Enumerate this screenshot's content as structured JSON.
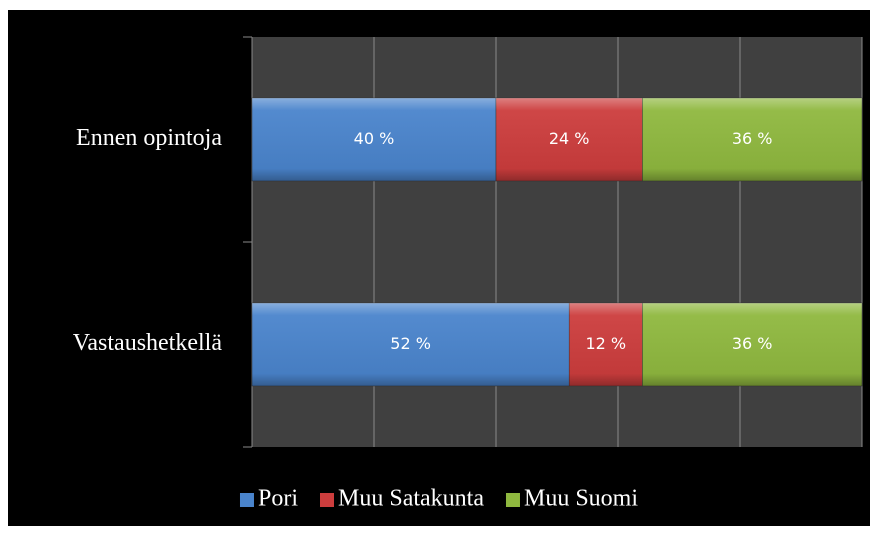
{
  "chart_data": {
    "type": "stacked-bar-horizontal",
    "categories": [
      "Ennen opintoja",
      "Vastaushetkellä"
    ],
    "series": [
      {
        "name": "Pori",
        "color": "#4a84cc",
        "values": [
          40,
          52
        ],
        "value_labels": [
          "40 %",
          "52 %"
        ]
      },
      {
        "name": "Muu Satakunta",
        "color": "#cc3d3d",
        "values": [
          24,
          12
        ],
        "value_labels": [
          "24 %",
          "12 %"
        ]
      },
      {
        "name": "Muu Suomi",
        "color": "#8fb83f",
        "values": [
          36,
          36
        ],
        "value_labels": [
          "36 %",
          "36 %"
        ]
      }
    ],
    "xlim": [
      0,
      100
    ],
    "xticks": [
      0,
      20,
      40,
      60,
      80,
      100
    ],
    "grid": true,
    "legend": "bottom"
  }
}
